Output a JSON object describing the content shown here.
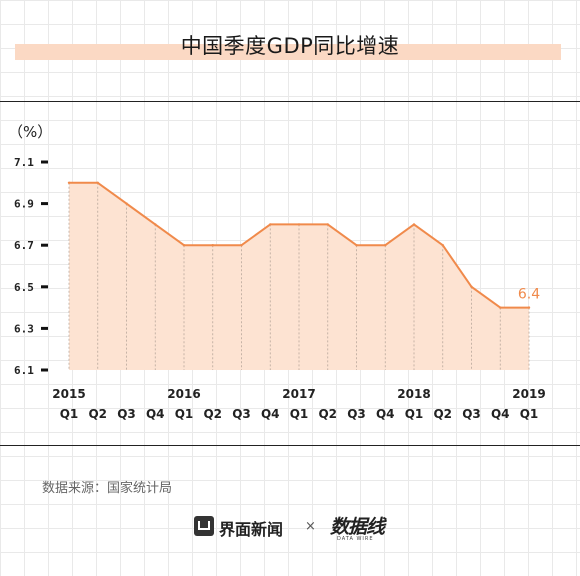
{
  "header": {
    "title": "中国季度GDP同比增速"
  },
  "footer": {
    "source": "数据来源：国家统计局",
    "brand": "界面新闻",
    "times": "×",
    "partner": "数据线",
    "partner_sub": "DATA WIRE"
  },
  "colors": {
    "line": "#f08a4b",
    "fill": "#fde3d2",
    "band": "#fbd9c4",
    "label": "#f08a4b"
  },
  "chart_data": {
    "type": "area",
    "unit_label": "（%）",
    "categories": [
      "2015 Q1",
      "2015 Q2",
      "2015 Q3",
      "2015 Q4",
      "2016 Q1",
      "2016 Q2",
      "2016 Q3",
      "2016 Q4",
      "2017 Q1",
      "2017 Q2",
      "2017 Q3",
      "2017 Q4",
      "2018 Q1",
      "2018 Q2",
      "2018 Q3",
      "2018 Q4",
      "2019 Q1"
    ],
    "quarter_labels": [
      "Q1",
      "Q2",
      "Q3",
      "Q4",
      "Q1",
      "Q2",
      "Q3",
      "Q4",
      "Q1",
      "Q2",
      "Q3",
      "Q4",
      "Q1",
      "Q2",
      "Q3",
      "Q4",
      "Q1"
    ],
    "year_labels": [
      {
        "index": 0,
        "label": "2015"
      },
      {
        "index": 4,
        "label": "2016"
      },
      {
        "index": 8,
        "label": "2017"
      },
      {
        "index": 12,
        "label": "2018"
      },
      {
        "index": 16,
        "label": "2019"
      }
    ],
    "values": [
      7.0,
      7.0,
      6.9,
      6.8,
      6.7,
      6.7,
      6.7,
      6.8,
      6.8,
      6.8,
      6.7,
      6.7,
      6.8,
      6.7,
      6.5,
      6.4,
      6.4
    ],
    "yticks": [
      6.1,
      6.3,
      6.5,
      6.7,
      6.9,
      7.1
    ],
    "ytick_labels": [
      "6.1",
      "6.3",
      "6.5",
      "6.7",
      "6.9",
      "7.1"
    ],
    "ylim": [
      6.1,
      7.1
    ],
    "annotation": {
      "index": 16,
      "text": "6.4"
    },
    "legend": "none",
    "grid": false
  }
}
